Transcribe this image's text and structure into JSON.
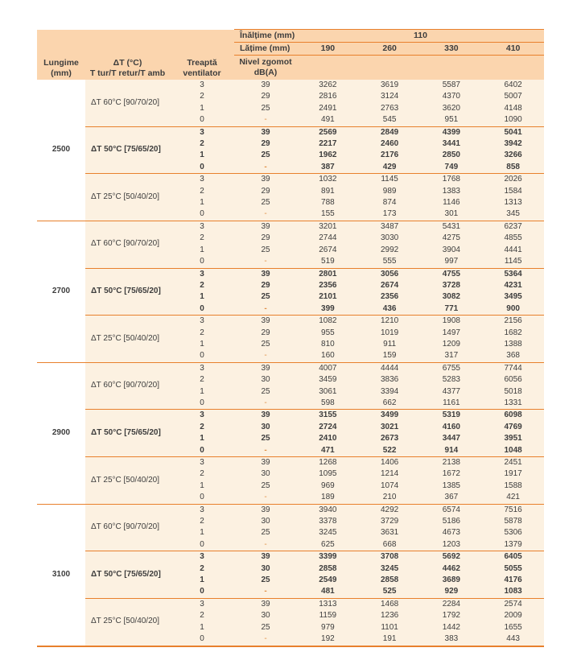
{
  "colors": {
    "header_peach": "#fbd5ae",
    "body_cream": "#fcf1e1",
    "rule_orange": "#e8802c",
    "text": "#3d3d3d"
  },
  "table": {
    "header": {
      "col_lungime": {
        "line1": "Lungime",
        "line2": "(mm)"
      },
      "col_delta": {
        "line1": "ΔT (°C)",
        "line2": "T tur/T retur/T amb"
      },
      "col_treapta": {
        "line1": "Treaptă",
        "line2": "ventilator"
      },
      "col_nivel": {
        "line1": "Nivel zgomot",
        "line2": "dB(A)"
      },
      "inaltime_label": "Înălțime (mm)",
      "inaltime_value": "110",
      "latime_label": "Lățime (mm)",
      "latime_values": [
        "190",
        "260",
        "330",
        "410"
      ]
    },
    "groups": [
      {
        "lungime": "2500",
        "subgroups": [
          {
            "label": "ΔT 60°C [90/70/20]",
            "bold": false,
            "rows": [
              {
                "treapta": "3",
                "nivel": "39",
                "values": [
                  "3262",
                  "3619",
                  "5587",
                  "6402"
                ]
              },
              {
                "treapta": "2",
                "nivel": "29",
                "values": [
                  "2816",
                  "3124",
                  "4370",
                  "5007"
                ]
              },
              {
                "treapta": "1",
                "nivel": "25",
                "values": [
                  "2491",
                  "2763",
                  "3620",
                  "4148"
                ]
              },
              {
                "treapta": "0",
                "nivel": "-",
                "values": [
                  "491",
                  "545",
                  "951",
                  "1090"
                ]
              }
            ]
          },
          {
            "label": "ΔT 50°C [75/65/20]",
            "bold": true,
            "rows": [
              {
                "treapta": "3",
                "nivel": "39",
                "values": [
                  "2569",
                  "2849",
                  "4399",
                  "5041"
                ]
              },
              {
                "treapta": "2",
                "nivel": "29",
                "values": [
                  "2217",
                  "2460",
                  "3441",
                  "3942"
                ]
              },
              {
                "treapta": "1",
                "nivel": "25",
                "values": [
                  "1962",
                  "2176",
                  "2850",
                  "3266"
                ]
              },
              {
                "treapta": "0",
                "nivel": "-",
                "values": [
                  "387",
                  "429",
                  "749",
                  "858"
                ]
              }
            ]
          },
          {
            "label": "ΔT 25°C [50/40/20]",
            "bold": false,
            "rows": [
              {
                "treapta": "3",
                "nivel": "39",
                "values": [
                  "1032",
                  "1145",
                  "1768",
                  "2026"
                ]
              },
              {
                "treapta": "2",
                "nivel": "29",
                "values": [
                  "891",
                  "989",
                  "1383",
                  "1584"
                ]
              },
              {
                "treapta": "1",
                "nivel": "25",
                "values": [
                  "788",
                  "874",
                  "1146",
                  "1313"
                ]
              },
              {
                "treapta": "0",
                "nivel": "-",
                "values": [
                  "155",
                  "173",
                  "301",
                  "345"
                ]
              }
            ]
          }
        ]
      },
      {
        "lungime": "2700",
        "subgroups": [
          {
            "label": "ΔT 60°C [90/70/20]",
            "bold": false,
            "rows": [
              {
                "treapta": "3",
                "nivel": "39",
                "values": [
                  "3201",
                  "3487",
                  "5431",
                  "6237"
                ]
              },
              {
                "treapta": "2",
                "nivel": "29",
                "values": [
                  "2744",
                  "3030",
                  "4275",
                  "4855"
                ]
              },
              {
                "treapta": "1",
                "nivel": "25",
                "values": [
                  "2674",
                  "2992",
                  "3904",
                  "4441"
                ]
              },
              {
                "treapta": "0",
                "nivel": "-",
                "values": [
                  "519",
                  "555",
                  "997",
                  "1145"
                ]
              }
            ]
          },
          {
            "label": "ΔT 50°C [75/65/20]",
            "bold": true,
            "rows": [
              {
                "treapta": "3",
                "nivel": "39",
                "values": [
                  "2801",
                  "3056",
                  "4755",
                  "5364"
                ]
              },
              {
                "treapta": "2",
                "nivel": "29",
                "values": [
                  "2356",
                  "2674",
                  "3728",
                  "4231"
                ]
              },
              {
                "treapta": "1",
                "nivel": "25",
                "values": [
                  "2101",
                  "2356",
                  "3082",
                  "3495"
                ]
              },
              {
                "treapta": "0",
                "nivel": "-",
                "values": [
                  "399",
                  "436",
                  "771",
                  "900"
                ]
              }
            ]
          },
          {
            "label": "ΔT 25°C [50/40/20]",
            "bold": false,
            "rows": [
              {
                "treapta": "3",
                "nivel": "39",
                "values": [
                  "1082",
                  "1210",
                  "1908",
                  "2156"
                ]
              },
              {
                "treapta": "2",
                "nivel": "29",
                "values": [
                  "955",
                  "1019",
                  "1497",
                  "1682"
                ]
              },
              {
                "treapta": "1",
                "nivel": "25",
                "values": [
                  "810",
                  "911",
                  "1209",
                  "1388"
                ]
              },
              {
                "treapta": "0",
                "nivel": "-",
                "values": [
                  "160",
                  "159",
                  "317",
                  "368"
                ]
              }
            ]
          }
        ]
      },
      {
        "lungime": "2900",
        "subgroups": [
          {
            "label": "ΔT 60°C [90/70/20]",
            "bold": false,
            "rows": [
              {
                "treapta": "3",
                "nivel": "39",
                "values": [
                  "4007",
                  "4444",
                  "6755",
                  "7744"
                ]
              },
              {
                "treapta": "2",
                "nivel": "30",
                "values": [
                  "3459",
                  "3836",
                  "5283",
                  "6056"
                ]
              },
              {
                "treapta": "1",
                "nivel": "25",
                "values": [
                  "3061",
                  "3394",
                  "4377",
                  "5018"
                ]
              },
              {
                "treapta": "0",
                "nivel": "-",
                "values": [
                  "598",
                  "662",
                  "1161",
                  "1331"
                ]
              }
            ]
          },
          {
            "label": "ΔT 50°C [75/65/20]",
            "bold": true,
            "rows": [
              {
                "treapta": "3",
                "nivel": "39",
                "values": [
                  "3155",
                  "3499",
                  "5319",
                  "6098"
                ]
              },
              {
                "treapta": "2",
                "nivel": "30",
                "values": [
                  "2724",
                  "3021",
                  "4160",
                  "4769"
                ]
              },
              {
                "treapta": "1",
                "nivel": "25",
                "values": [
                  "2410",
                  "2673",
                  "3447",
                  "3951"
                ]
              },
              {
                "treapta": "0",
                "nivel": "-",
                "values": [
                  "471",
                  "522",
                  "914",
                  "1048"
                ]
              }
            ]
          },
          {
            "label": "ΔT 25°C [50/40/20]",
            "bold": false,
            "rows": [
              {
                "treapta": "3",
                "nivel": "39",
                "values": [
                  "1268",
                  "1406",
                  "2138",
                  "2451"
                ]
              },
              {
                "treapta": "2",
                "nivel": "30",
                "values": [
                  "1095",
                  "1214",
                  "1672",
                  "1917"
                ]
              },
              {
                "treapta": "1",
                "nivel": "25",
                "values": [
                  "969",
                  "1074",
                  "1385",
                  "1588"
                ]
              },
              {
                "treapta": "0",
                "nivel": "-",
                "values": [
                  "189",
                  "210",
                  "367",
                  "421"
                ]
              }
            ]
          }
        ]
      },
      {
        "lungime": "3100",
        "subgroups": [
          {
            "label": "ΔT 60°C [90/70/20]",
            "bold": false,
            "rows": [
              {
                "treapta": "3",
                "nivel": "39",
                "values": [
                  "3940",
                  "4292",
                  "6574",
                  "7516"
                ]
              },
              {
                "treapta": "2",
                "nivel": "30",
                "values": [
                  "3378",
                  "3729",
                  "5186",
                  "5878"
                ]
              },
              {
                "treapta": "1",
                "nivel": "25",
                "values": [
                  "3245",
                  "3631",
                  "4673",
                  "5306"
                ]
              },
              {
                "treapta": "0",
                "nivel": "-",
                "values": [
                  "625",
                  "668",
                  "1203",
                  "1379"
                ]
              }
            ]
          },
          {
            "label": "ΔT 50°C [75/65/20]",
            "bold": true,
            "rows": [
              {
                "treapta": "3",
                "nivel": "39",
                "values": [
                  "3399",
                  "3708",
                  "5692",
                  "6405"
                ]
              },
              {
                "treapta": "2",
                "nivel": "30",
                "values": [
                  "2858",
                  "3245",
                  "4462",
                  "5055"
                ]
              },
              {
                "treapta": "1",
                "nivel": "25",
                "values": [
                  "2549",
                  "2858",
                  "3689",
                  "4176"
                ]
              },
              {
                "treapta": "0",
                "nivel": "-",
                "values": [
                  "481",
                  "525",
                  "929",
                  "1083"
                ]
              }
            ]
          },
          {
            "label": "ΔT 25°C [50/40/20]",
            "bold": false,
            "rows": [
              {
                "treapta": "3",
                "nivel": "39",
                "values": [
                  "1313",
                  "1468",
                  "2284",
                  "2574"
                ]
              },
              {
                "treapta": "2",
                "nivel": "30",
                "values": [
                  "1159",
                  "1236",
                  "1792",
                  "2009"
                ]
              },
              {
                "treapta": "1",
                "nivel": "25",
                "values": [
                  "979",
                  "1101",
                  "1442",
                  "1655"
                ]
              },
              {
                "treapta": "0",
                "nivel": "-",
                "values": [
                  "192",
                  "191",
                  "383",
                  "443"
                ]
              }
            ]
          }
        ]
      }
    ]
  }
}
